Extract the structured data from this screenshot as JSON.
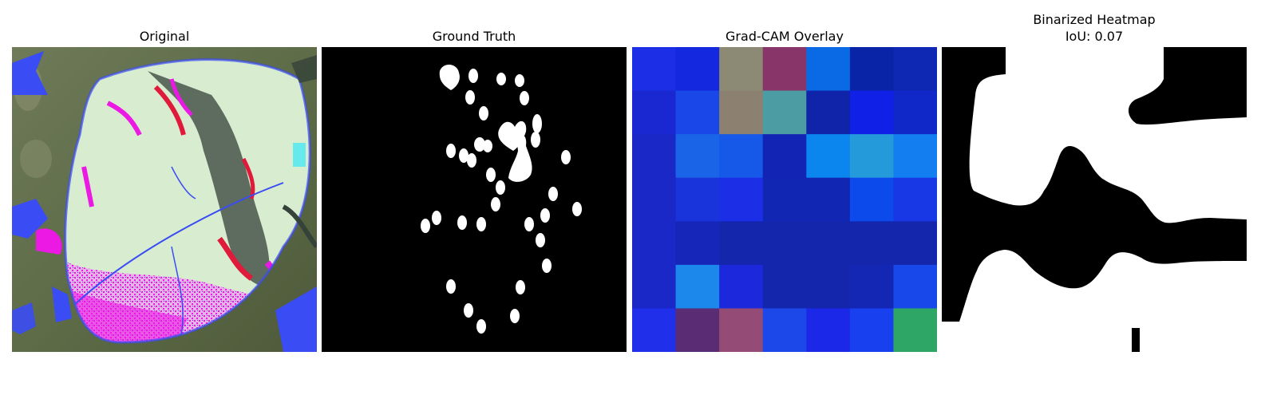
{
  "panels": {
    "original": {
      "title": "Original"
    },
    "ground_truth": {
      "title": "Ground Truth"
    },
    "gradcam": {
      "title": "Grad-CAM Overlay"
    },
    "binarized": {
      "title": "Binarized Heatmap",
      "subtitle": "IoU: 0.07"
    }
  },
  "gradcam_grid": {
    "rows": 7,
    "cols": 7,
    "colors": [
      [
        "#1c2ee6",
        "#1428e0",
        "#8c8a74",
        "#88366a",
        "#0a6ae6",
        "#0a24a8",
        "#0f28b4"
      ],
      [
        "#1a28d2",
        "#1a48e8",
        "#8c8070",
        "#4c9ca4",
        "#0f24a8",
        "#1020e6",
        "#1028c8"
      ],
      [
        "#1a28c8",
        "#1a64e8",
        "#1658e8",
        "#1224b4",
        "#0a86ee",
        "#249ada",
        "#127ef0"
      ],
      [
        "#1a28c8",
        "#1a34dc",
        "#1c2ee6",
        "#1226b4",
        "#1226b4",
        "#0c4aec",
        "#1838e6"
      ],
      [
        "#1a28c8",
        "#1626b8",
        "#1426ac",
        "#1426ac",
        "#1426ac",
        "#1426ac",
        "#1426ac"
      ],
      [
        "#1a28c8",
        "#1c88ec",
        "#1c28dc",
        "#1426ac",
        "#1426ac",
        "#1426b4",
        "#1848ea"
      ],
      [
        "#2030ea",
        "#5a2c74",
        "#944c76",
        "#1c48ea",
        "#1c28e8",
        "#1840ee",
        "#2ea666"
      ]
    ]
  },
  "colors": {
    "background": "#ffffff",
    "mask_black": "#000000",
    "mask_white": "#ffffff",
    "leaf": "#d8ecd0",
    "blue": "#3a4cf4",
    "magenta": "#ec18e4",
    "dark": "#34423a",
    "red": "#e01a3a"
  }
}
